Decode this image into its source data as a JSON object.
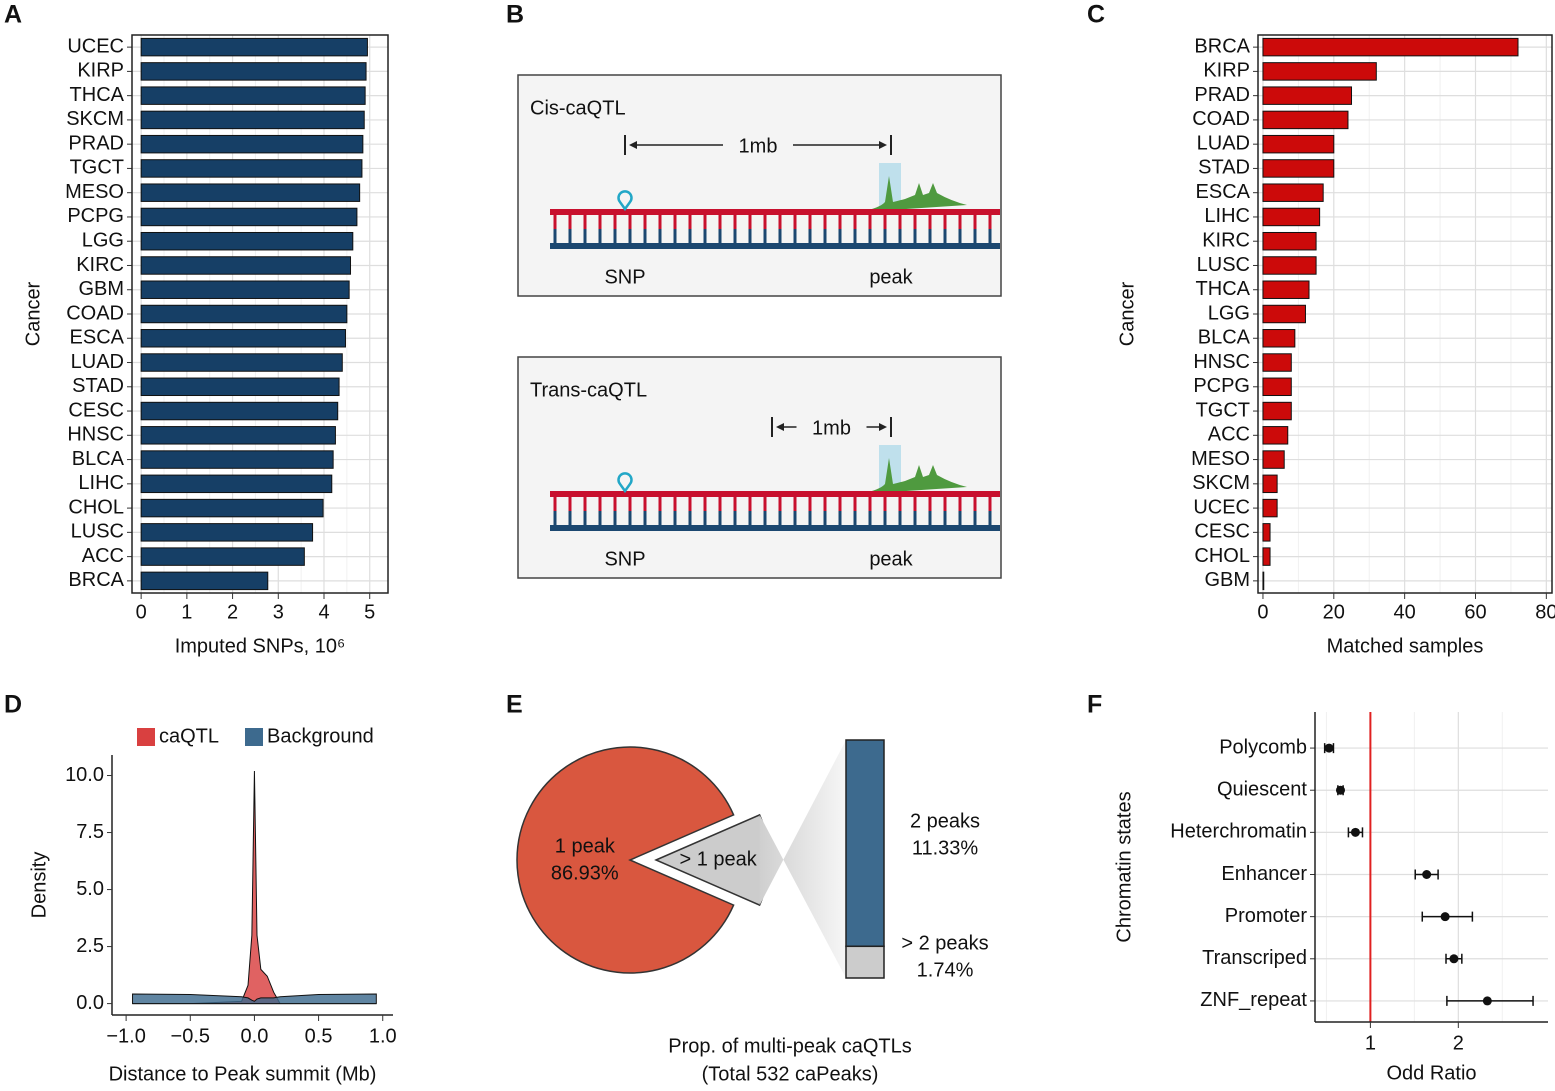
{
  "panel_labels": [
    "A",
    "B",
    "C",
    "D",
    "E",
    "F"
  ],
  "diagram": {
    "panels": [
      {
        "title": "Cis-caQTL",
        "distance": "1mb",
        "snp": "SNP",
        "peak": "peak"
      },
      {
        "title": "Trans-caQTL",
        "distance": "1mb",
        "snp": "SNP",
        "peak": "peak"
      }
    ]
  },
  "chart_data": [
    {
      "type": "hbar",
      "xlabel": "Imputed SNPs, 10⁶",
      "ylabel": "Cancer",
      "categories": [
        "UCEC",
        "KIRP",
        "THCA",
        "SKCM",
        "PRAD",
        "TGCT",
        "MESO",
        "PCPG",
        "LGG",
        "KIRC",
        "GBM",
        "COAD",
        "ESCA",
        "LUAD",
        "STAD",
        "CESC",
        "HNSC",
        "BLCA",
        "LIHC",
        "CHOL",
        "LUSC",
        "ACC",
        "BRCA"
      ],
      "values": [
        4.95,
        4.92,
        4.9,
        4.88,
        4.85,
        4.83,
        4.78,
        4.72,
        4.63,
        4.58,
        4.55,
        4.5,
        4.47,
        4.4,
        4.33,
        4.3,
        4.25,
        4.2,
        4.17,
        3.98,
        3.75,
        3.57,
        2.77
      ],
      "color": "#163f66",
      "xlim": [
        -0.2,
        5.4
      ],
      "xticks": [
        0,
        1,
        2,
        3,
        4,
        5
      ],
      "grid": true
    },
    {
      "type": "hbar",
      "xlabel": "Matched samples",
      "ylabel": "Cancer",
      "categories": [
        "BRCA",
        "KIRP",
        "PRAD",
        "COAD",
        "LUAD",
        "STAD",
        "ESCA",
        "LIHC",
        "KIRC",
        "LUSC",
        "THCA",
        "LGG",
        "BLCA",
        "HNSC",
        "PCPG",
        "TGCT",
        "ACC",
        "MESO",
        "SKCM",
        "UCEC",
        "CESC",
        "CHOL",
        "GBM"
      ],
      "values": [
        72,
        32,
        25,
        24,
        20,
        20,
        17,
        16,
        15,
        15,
        13,
        12,
        9,
        8,
        8,
        8,
        7,
        6,
        4,
        4,
        2,
        2,
        0
      ],
      "color": "#cc0a0a",
      "xlim": [
        -1.4,
        81.6
      ],
      "xticks": [
        0,
        20,
        40,
        60,
        80
      ],
      "grid": true
    },
    {
      "type": "density",
      "xlabel": "Distance to Peak summit (Mb)",
      "ylabel": "Density",
      "x": [
        -0.95,
        -0.5,
        -0.1,
        -0.05,
        -0.02,
        0,
        0.02,
        0.05,
        0.1,
        0.15,
        0.2,
        0.5,
        0.95
      ],
      "series": [
        {
          "name": "caQTL",
          "color": "#d94040",
          "values": [
            0,
            0,
            0.1,
            0.8,
            3,
            10.2,
            3,
            1.5,
            1.2,
            0.5,
            0,
            0,
            0
          ]
        },
        {
          "name": "Background",
          "color": "#3d6a8e",
          "values": [
            0.42,
            0.4,
            0.3,
            0.25,
            0.15,
            0.1,
            0.2,
            0.25,
            0.25,
            0.25,
            0.3,
            0.4,
            0.42
          ]
        }
      ],
      "xlim": [
        -1.11,
        1.08
      ],
      "ylim": [
        -0.5,
        10.9
      ],
      "xticks": [
        {
          "value": -1,
          "label": "−1.0"
        },
        {
          "value": -0.5,
          "label": "−0.5"
        },
        {
          "value": 0,
          "label": "0.0"
        },
        0.5,
        {
          "value": 1,
          "label": "1.0"
        }
      ],
      "yticks": [
        {
          "value": 0,
          "label": "0.0"
        },
        2.5,
        {
          "value": 5,
          "label": "5.0"
        },
        7.5,
        {
          "value": 10,
          "label": "10.0"
        }
      ],
      "legend": "top"
    },
    {
      "type": "pie",
      "categories": [
        "1 peak",
        "> 1 peak"
      ],
      "values": [
        86.93,
        13.07
      ],
      "value_labels": [
        "86.93%",
        null
      ],
      "colors": [
        "#d9573f",
        "#cccccc"
      ],
      "caption": [
        "Prop. of multi-peak caQTLs",
        "(Total 532 caPeaks)"
      ]
    },
    {
      "type": "stacked_bar",
      "categories": [
        "2 peaks",
        "> 2 peaks"
      ],
      "values": [
        11.33,
        1.74
      ],
      "value_labels": [
        "11.33%",
        "1.74%"
      ],
      "colors": [
        "#3d6a8e",
        "#cccccc"
      ]
    },
    {
      "type": "errorbar",
      "xlabel": "Odd Ratio",
      "ylabel": "Chromatin states",
      "categories": [
        "Polycomb",
        "Quiescent",
        "Heterchromatin",
        "Enhancer",
        "Promoter",
        "Transcriped",
        "ZNF_repeat"
      ],
      "values": [
        0.53,
        0.66,
        0.83,
        1.64,
        1.85,
        1.95,
        2.33
      ],
      "ci_low": [
        0.48,
        0.63,
        0.75,
        1.51,
        1.59,
        1.86,
        1.87
      ],
      "ci_high": [
        0.58,
        0.69,
        0.91,
        1.77,
        2.16,
        2.04,
        2.85
      ],
      "xlim": [
        0.37,
        3.02
      ],
      "xticks": [
        1,
        2
      ],
      "refline": 1,
      "refline_color": "#e02020",
      "grid": true
    }
  ]
}
